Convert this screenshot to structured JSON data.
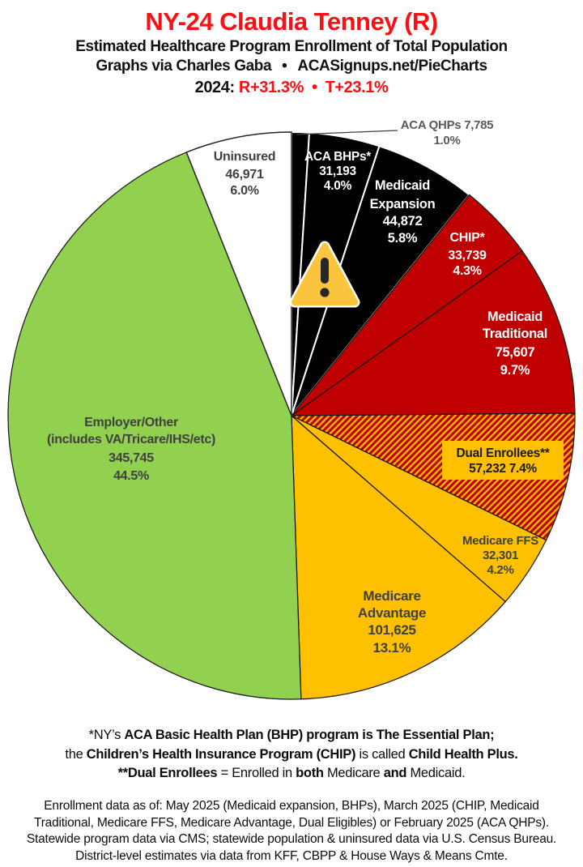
{
  "header": {
    "title": "NY-24 Claudia Tenney (R)",
    "subtitle": "Estimated Healthcare Program Enrollment of Total Population",
    "credit": {
      "left": "Graphs via Charles Gaba",
      "bullet": "•",
      "right": "ACASignups.net/PieCharts"
    },
    "partisan": {
      "prefix": "2024:",
      "lean": "R+31.3%",
      "bullet": "•",
      "trump_margin": "T+23.1%"
    },
    "colors": {
      "accent_red": "#f81014",
      "text_black": "#111111"
    }
  },
  "chart_data": {
    "type": "pie",
    "start_angle_deg": 0,
    "direction": "clockwise",
    "overlay_icon": "warning-triangle",
    "slices": [
      {
        "id": "aca_qhps",
        "label": "ACA QHPs",
        "value": 7785,
        "value_text": "7,785",
        "pct_text": "1.0%",
        "color": "#000000",
        "border": "#FFFFFF",
        "text_color": "#595959",
        "label_placement": "outside",
        "label_lines": [
          "ACA QHPs 7,785",
          "1.0%"
        ]
      },
      {
        "id": "aca_bhps",
        "label": "ACA BHPs*",
        "value": 31193,
        "value_text": "31,193",
        "pct_text": "4.0%",
        "color": "#000000",
        "border": "#FFFFFF",
        "text_color": "#FFFFFF",
        "label_placement": "inside",
        "label_lines": [
          "ACA BHPs*",
          "31,193",
          "4.0%"
        ]
      },
      {
        "id": "medicaid_expansion",
        "label": "Medicaid Expansion",
        "value": 44872,
        "value_text": "44,872",
        "pct_text": "5.8%",
        "color": "#000000",
        "border": "#FFFFFF",
        "text_color": "#FFFFFF",
        "label_placement": "inside",
        "label_lines": [
          "Medicaid",
          "Expansion",
          "44,872",
          "5.8%"
        ]
      },
      {
        "id": "chip",
        "label": "CHIP*",
        "value": 33739,
        "value_text": "33,739",
        "pct_text": "4.3%",
        "color": "#C00000",
        "border": "#1A1A1A",
        "text_color": "#FFFFFF",
        "label_placement": "inside",
        "label_lines": [
          "CHIP*",
          "33,739",
          "4.3%"
        ]
      },
      {
        "id": "medicaid_traditional",
        "label": "Medicaid Traditional",
        "value": 75607,
        "value_text": "75,607",
        "pct_text": "9.7%",
        "color": "#C00000",
        "border": "#1A1A1A",
        "text_color": "#FFFFFF",
        "label_placement": "inside",
        "label_lines": [
          "Medicaid",
          "Traditional",
          "75,607",
          "9.7%"
        ]
      },
      {
        "id": "dual_enrollees",
        "label": "Dual Enrollees**",
        "value": 57232,
        "value_text": "57,232",
        "pct_text": "7.4%",
        "pattern": "hatch",
        "hatch_colors": [
          "#C00000",
          "#FFC000"
        ],
        "border": "#1A1A1A",
        "text_color": "#1A1A1A",
        "label_bg": "#FFC000",
        "label_placement": "inside",
        "label_lines": [
          "Dual Enrollees**",
          "57,232 7.4%"
        ]
      },
      {
        "id": "medicare_ffs",
        "label": "Medicare FFS",
        "value": 32301,
        "value_text": "32,301",
        "pct_text": "4.2%",
        "color": "#FFC000",
        "border": "#1A1A1A",
        "text_color": "#404040",
        "label_placement": "inside",
        "label_lines": [
          "Medicare FFS",
          "32,301",
          "4.2%"
        ]
      },
      {
        "id": "medicare_advantage",
        "label": "Medicare Advantage",
        "value": 101625,
        "value_text": "101,625",
        "pct_text": "13.1%",
        "color": "#FFC000",
        "border": "#1A1A1A",
        "text_color": "#404040",
        "label_placement": "inside",
        "label_lines": [
          "Medicare",
          "Advantage",
          "101,625",
          "13.1%"
        ]
      },
      {
        "id": "employer_other",
        "label": "Employer/Other (includes VA/Tricare/IHS/etc)",
        "value": 345745,
        "value_text": "345,745",
        "pct_text": "44.5%",
        "color": "#92D050",
        "border": "#1A1A1A",
        "text_color": "#404040",
        "label_placement": "inside",
        "label_lines": [
          "Employer/Other",
          "(includes VA/Tricare/IHS/etc)",
          "345,745",
          "44.5%"
        ]
      },
      {
        "id": "uninsured",
        "label": "Uninsured",
        "value": 46971,
        "value_text": "46,971",
        "pct_text": "6.0%",
        "color": "#FFFFFF",
        "border": "#262626",
        "text_color": "#404040",
        "label_placement": "inside",
        "label_lines": [
          "Uninsured",
          "46,971",
          "6.0%"
        ]
      }
    ]
  },
  "footnotes": {
    "lines": [
      [
        {
          "t": "*NY’s ",
          "b": false
        },
        {
          "t": "ACA Basic Health Plan (BHP) program is The Essential Plan;",
          "b": true
        }
      ],
      [
        {
          "t": "the ",
          "b": false
        },
        {
          "t": "Children’s Health Insurance Program (CHIP)",
          "b": true
        },
        {
          "t": " is called ",
          "b": false
        },
        {
          "t": "Child Health Plus.",
          "b": true
        }
      ],
      [
        {
          "t": "**Dual Enrollees",
          "b": true
        },
        {
          "t": " = Enrolled in ",
          "b": false
        },
        {
          "t": "both",
          "b": true
        },
        {
          "t": " Medicare ",
          "b": false
        },
        {
          "t": "and",
          "b": true
        },
        {
          "t": " Medicaid.",
          "b": false
        }
      ]
    ]
  },
  "source": {
    "lines": [
      "Enrollment data as of: May 2025 (Medicaid expansion, BHPs), March 2025 (CHIP, Medicaid",
      "Traditional, Medicare FFS, Medicare Advantage, Dual Eligibles) or February 2025 (ACA QHPs).",
      "Statewide program data via CMS; statewide population & uninsured data via U.S. Census Bureau.",
      "District-level estimates via data from KFF, CBPP & House Ways & Means Cmte."
    ]
  }
}
